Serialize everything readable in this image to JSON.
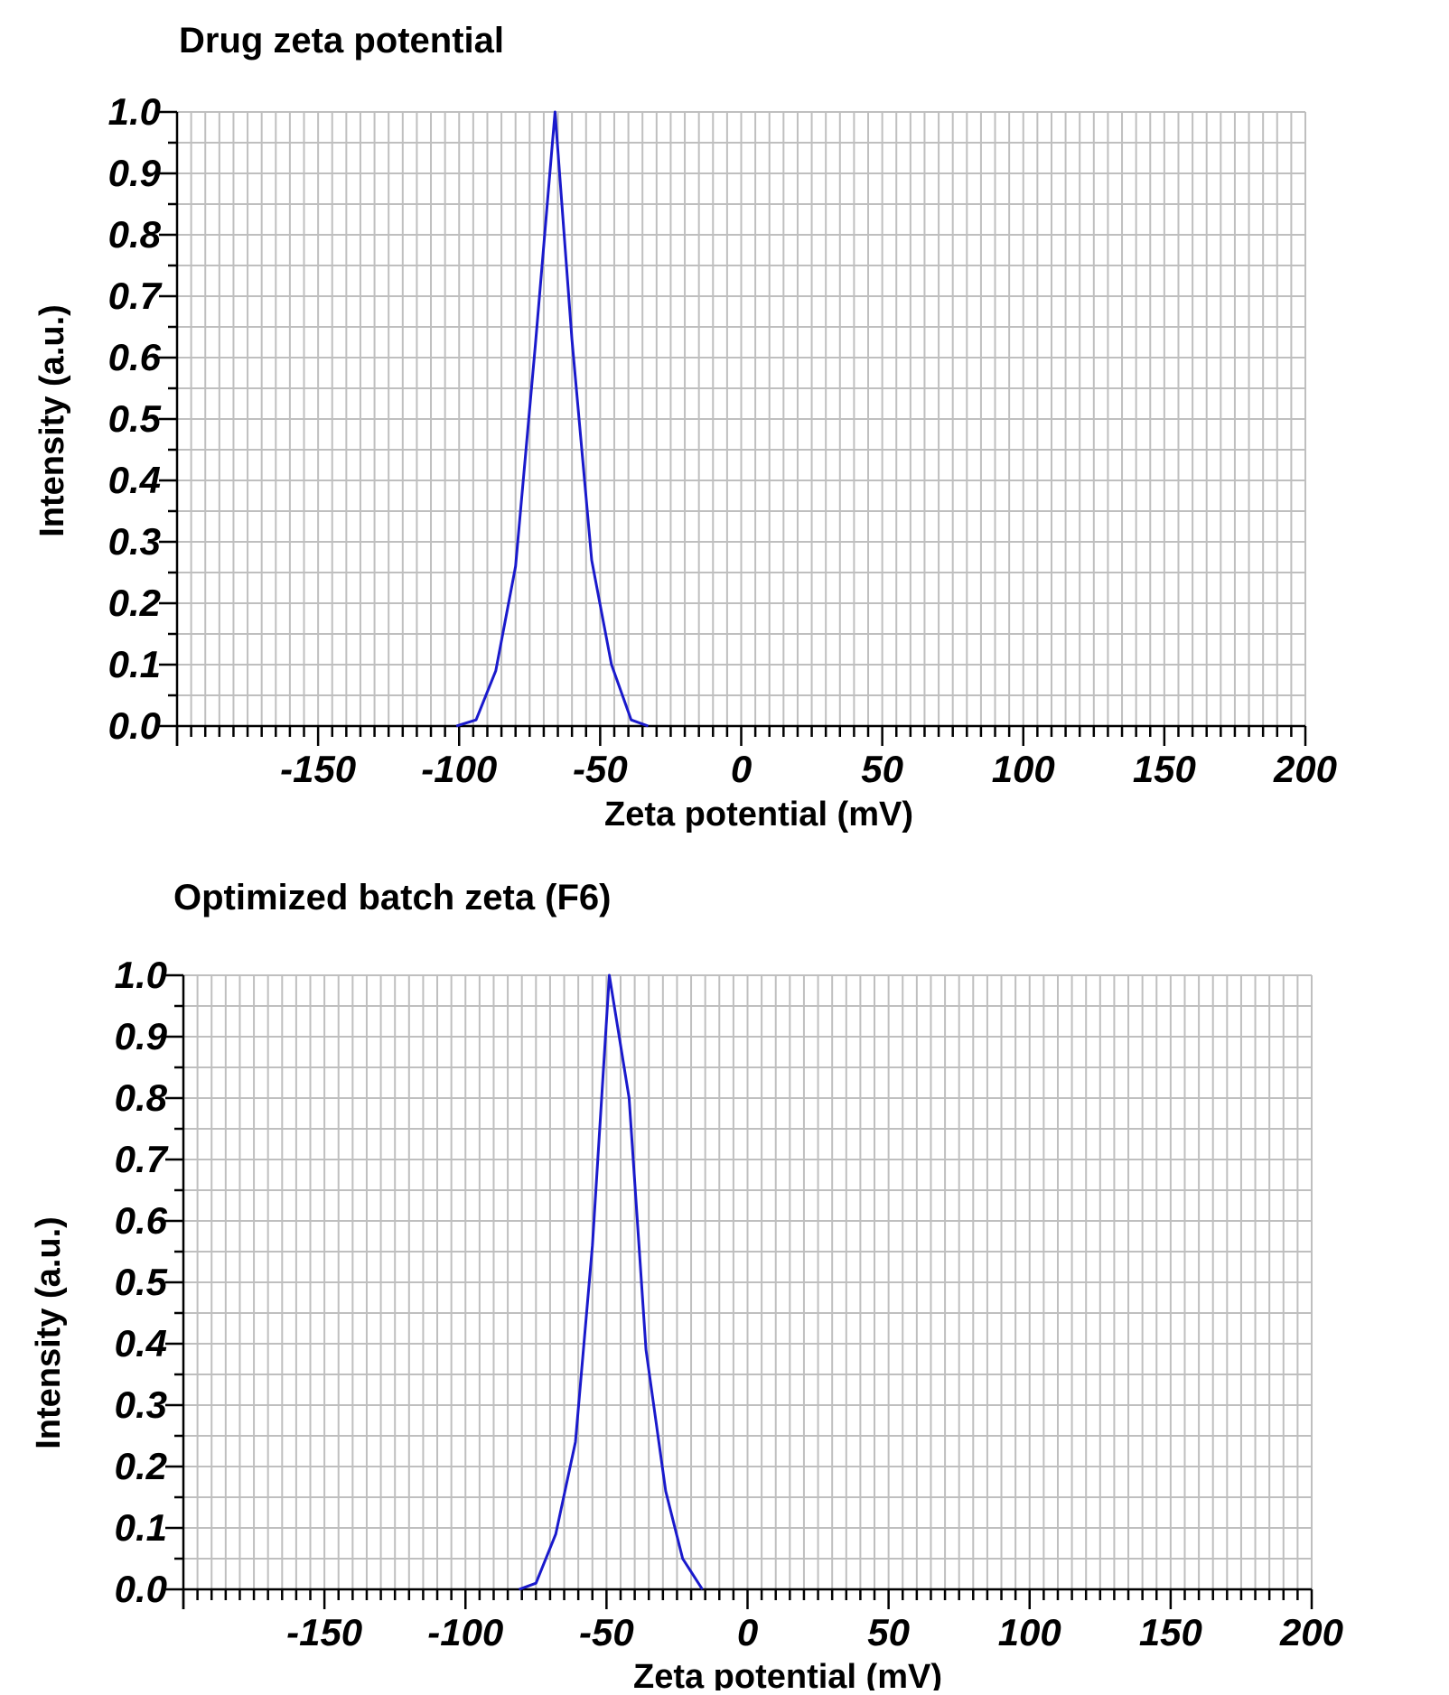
{
  "chart_data": [
    {
      "type": "line",
      "title": "Drug zeta potential",
      "xlabel": "Zeta potential (mV)",
      "ylabel": "Intensity (a.u.)",
      "xlim": [
        -200,
        200
      ],
      "ylim": [
        0,
        1
      ],
      "grid": true,
      "x_ticks": [
        -150,
        -100,
        -50,
        0,
        50,
        100,
        150,
        200
      ],
      "x_tick_labels": [
        "-150",
        "-100",
        "-50",
        "0",
        "50",
        "100",
        "150",
        "200"
      ],
      "y_ticks": [
        0,
        0.1,
        0.2,
        0.3,
        0.4,
        0.5,
        0.6,
        0.7,
        0.8,
        0.9,
        1.0
      ],
      "y_tick_labels": [
        "0.0",
        "0.1",
        "0.2",
        "0.3",
        "0.4",
        "0.5",
        "0.6",
        "0.7",
        "0.8",
        "0.9",
        "1.0"
      ],
      "line_color": "#1a1acc",
      "series": [
        {
          "x": [
            -101,
            -94,
            -87,
            -80,
            -73,
            -66,
            -60,
            -53,
            -46,
            -39,
            -33
          ],
          "y": [
            0,
            0.01,
            0.09,
            0.26,
            0.62,
            1.0,
            0.63,
            0.27,
            0.1,
            0.01,
            0
          ]
        }
      ]
    },
    {
      "type": "line",
      "title": "Optimized batch zeta (F6)",
      "xlabel": "Zeta potential (mV)",
      "ylabel": "Intensity (a.u.)",
      "xlim": [
        -200,
        200
      ],
      "ylim": [
        0,
        1
      ],
      "grid": true,
      "x_ticks": [
        -150,
        -100,
        -50,
        0,
        50,
        100,
        150,
        200
      ],
      "x_tick_labels": [
        "-150",
        "-100",
        "-50",
        "0",
        "50",
        "100",
        "150",
        "200"
      ],
      "y_ticks": [
        0,
        0.1,
        0.2,
        0.3,
        0.4,
        0.5,
        0.6,
        0.7,
        0.8,
        0.9,
        1.0
      ],
      "y_tick_labels": [
        "0.0",
        "0.1",
        "0.2",
        "0.3",
        "0.4",
        "0.5",
        "0.6",
        "0.7",
        "0.8",
        "0.9",
        "1.0"
      ],
      "line_color": "#1a1acc",
      "series": [
        {
          "x": [
            -81,
            -75,
            -68,
            -61,
            -55,
            -49,
            -42,
            -36,
            -29,
            -23,
            -16
          ],
          "y": [
            0,
            0.01,
            0.09,
            0.24,
            0.56,
            1.0,
            0.8,
            0.39,
            0.16,
            0.05,
            0
          ]
        }
      ]
    }
  ]
}
